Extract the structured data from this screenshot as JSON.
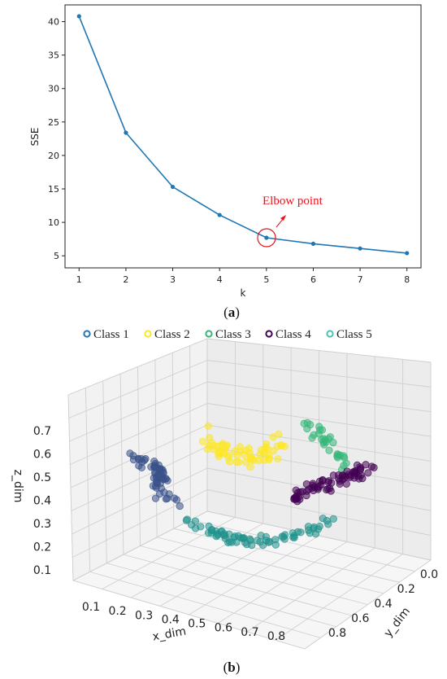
{
  "chart_data": [
    {
      "panel": "a",
      "type": "line",
      "x": [
        1,
        2,
        3,
        4,
        5,
        6,
        7,
        8
      ],
      "values": [
        40.8,
        23.4,
        15.3,
        11.1,
        7.7,
        6.8,
        6.1,
        5.4
      ],
      "xlabel": "k",
      "ylabel": "SSE",
      "xticks": [
        "1",
        "2",
        "3",
        "4",
        "5",
        "6",
        "7",
        "8"
      ],
      "yticks": [
        "5",
        "10",
        "15",
        "20",
        "25",
        "30",
        "35",
        "40"
      ],
      "xlim": [
        0.7,
        8.3
      ],
      "ylim": [
        3.2,
        42.5
      ],
      "color": "#1f77b4",
      "annotation": {
        "text": "Elbow point",
        "x": 5,
        "y": 7.7,
        "color": "#e8131b"
      },
      "caption": "(a)"
    },
    {
      "panel": "b",
      "type": "scatter",
      "projection": "3d",
      "xlabel": "x_dim",
      "ylabel": "y_dim",
      "zlabel": "z_dim",
      "xticks": [
        "0.1",
        "0.2",
        "0.3",
        "0.4",
        "0.5",
        "0.6",
        "0.7",
        "0.8"
      ],
      "yticks": [
        "0.0",
        "0.2",
        "0.4",
        "0.6",
        "0.8"
      ],
      "zticks": [
        "0.1",
        "0.2",
        "0.3",
        "0.4",
        "0.5",
        "0.6",
        "0.7"
      ],
      "legend": "top",
      "series": [
        {
          "name": "Class 1",
          "color": "#3b528b",
          "legend_color": "#1f77b4"
        },
        {
          "name": "Class 2",
          "color": "#fde725",
          "legend_color": "#fde725"
        },
        {
          "name": "Class 3",
          "color": "#35b779",
          "legend_color": "#35b779"
        },
        {
          "name": "Class 4",
          "color": "#440154",
          "legend_color": "#440154"
        },
        {
          "name": "Class 5",
          "color": "#21918c",
          "legend_color": "#4fc1b4"
        }
      ],
      "caption": "(b)"
    }
  ]
}
